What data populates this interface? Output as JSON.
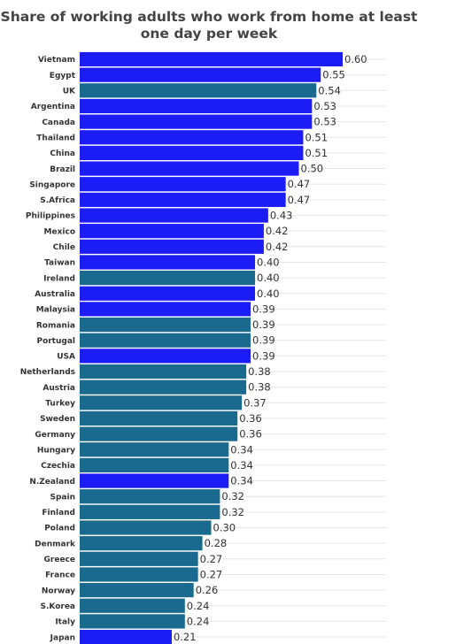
{
  "chart_data": {
    "type": "bar",
    "orientation": "horizontal",
    "title": "Share of working adults who work from home at least one day per week",
    "xlabel": "",
    "ylabel": "",
    "xlim": [
      0,
      0.65
    ],
    "grid": true,
    "legend": "none",
    "colors": {
      "highlight": "#1c1cf7",
      "standard": "#1a6a8f",
      "gridline": "#e6e6e6"
    },
    "categories": [
      "Vietnam",
      "Egypt",
      "UK",
      "Argentina",
      "Canada",
      "Thailand",
      "China",
      "Brazil",
      "Singapore",
      "S.Africa",
      "Philippines",
      "Mexico",
      "Chile",
      "Taiwan",
      "Ireland",
      "Australia",
      "Malaysia",
      "Romania",
      "Portugal",
      "USA",
      "Netherlands",
      "Austria",
      "Turkey",
      "Sweden",
      "Germany",
      "Hungary",
      "Czechia",
      "N.Zealand",
      "Spain",
      "Finland",
      "Poland",
      "Denmark",
      "Greece",
      "France",
      "Norway",
      "S.Korea",
      "Italy",
      "Japan"
    ],
    "values": [
      0.6,
      0.55,
      0.54,
      0.53,
      0.53,
      0.51,
      0.51,
      0.5,
      0.47,
      0.47,
      0.43,
      0.42,
      0.42,
      0.4,
      0.4,
      0.4,
      0.39,
      0.39,
      0.39,
      0.39,
      0.38,
      0.38,
      0.37,
      0.36,
      0.36,
      0.34,
      0.34,
      0.34,
      0.32,
      0.32,
      0.3,
      0.28,
      0.27,
      0.27,
      0.26,
      0.24,
      0.24,
      0.21
    ],
    "value_labels": [
      "0.60",
      "0.55",
      "0.54",
      "0.53",
      "0.53",
      "0.51",
      "0.51",
      "0.50",
      "0.47",
      "0.47",
      "0.43",
      "0.42",
      "0.42",
      "0.40",
      "0.40",
      "0.40",
      "0.39",
      "0.39",
      "0.39",
      "0.39",
      "0.38",
      "0.38",
      "0.37",
      "0.36",
      "0.36",
      "0.34",
      "0.34",
      "0.34",
      "0.32",
      "0.32",
      "0.30",
      "0.28",
      "0.27",
      "0.27",
      "0.26",
      "0.24",
      "0.24",
      "0.21"
    ],
    "bar_colors": [
      "highlight",
      "highlight",
      "standard",
      "highlight",
      "highlight",
      "highlight",
      "highlight",
      "highlight",
      "highlight",
      "highlight",
      "highlight",
      "highlight",
      "highlight",
      "highlight",
      "standard",
      "highlight",
      "highlight",
      "standard",
      "standard",
      "highlight",
      "standard",
      "standard",
      "standard",
      "standard",
      "standard",
      "standard",
      "standard",
      "highlight",
      "standard",
      "standard",
      "standard",
      "standard",
      "standard",
      "standard",
      "standard",
      "standard",
      "standard",
      "highlight"
    ]
  }
}
